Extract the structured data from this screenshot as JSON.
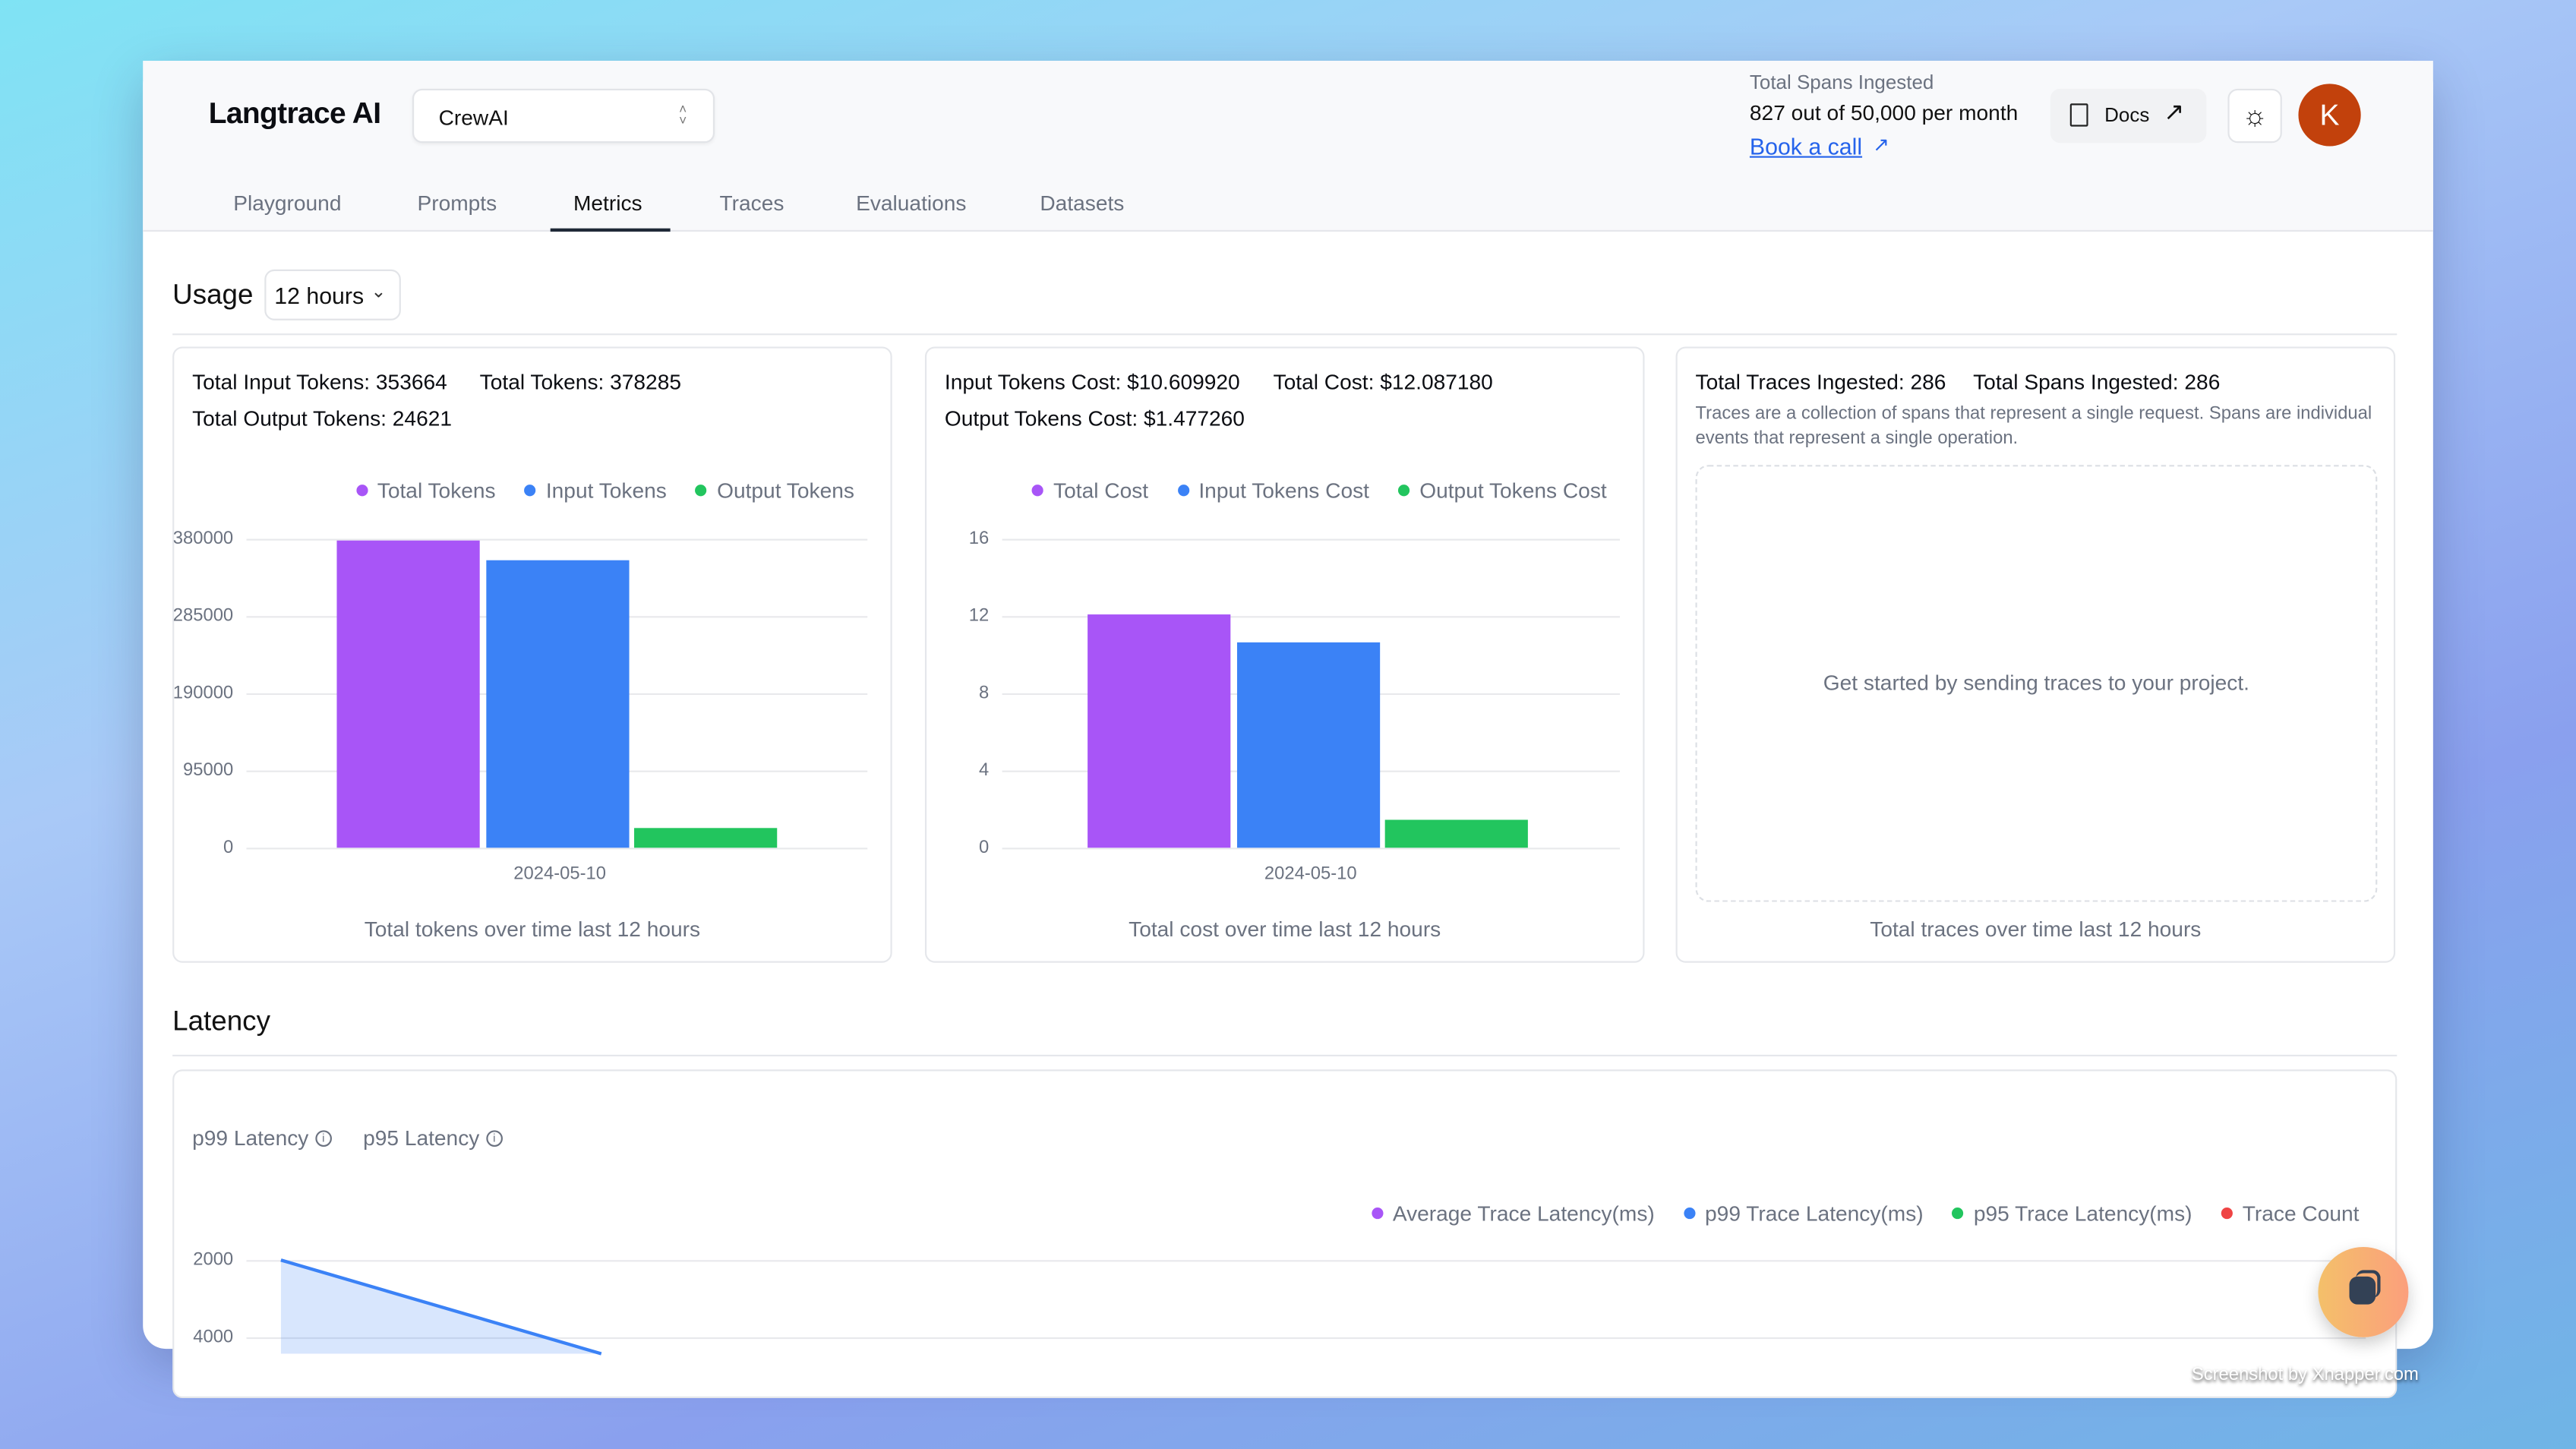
{
  "header": {
    "brand": "Langtrace AI",
    "project_select": "CrewAI",
    "spans_label": "Total Spans Ingested",
    "spans_value": "827 out of 50,000 per month",
    "book_call": "Book a call",
    "book_call_icon": "arrow-up-right-icon",
    "docs_label": "Docs",
    "theme_icon": "sun-icon",
    "avatar_initial": "K",
    "avatar_color": "#c2410c"
  },
  "tabs": [
    {
      "label": "Playground",
      "active": false
    },
    {
      "label": "Prompts",
      "active": false
    },
    {
      "label": "Metrics",
      "active": true
    },
    {
      "label": "Traces",
      "active": false
    },
    {
      "label": "Evaluations",
      "active": false
    },
    {
      "label": "Datasets",
      "active": false
    }
  ],
  "usage": {
    "title": "Usage",
    "range_select": "12 hours",
    "tokens_card": {
      "stats": [
        "Total Input Tokens: 353664",
        "Total Tokens: 378285",
        "Total Output Tokens: 24621"
      ],
      "caption": "Total tokens over time last 12 hours"
    },
    "cost_card": {
      "stats": [
        "Input Tokens Cost: $10.609920",
        "Total Cost: $12.087180",
        "Output Tokens Cost: $1.477260"
      ],
      "caption": "Total cost over time last 12 hours"
    },
    "traces_card": {
      "stats": [
        "Total Traces Ingested: 286",
        "Total Spans Ingested: 286"
      ],
      "description": "Traces are a collection of spans that represent a single request. Spans are individual events that represent a single operation.",
      "empty_message": "Get started by sending traces to your project.",
      "caption": "Total traces over time last 12 hours"
    }
  },
  "latency": {
    "title": "Latency",
    "tabs": [
      "p99 Latency",
      "p95 Latency"
    ]
  },
  "chart_data": [
    {
      "type": "bar",
      "categories": [
        "2024-05-10"
      ],
      "series": [
        {
          "name": "Total Tokens",
          "values": [
            378285
          ],
          "color": "#a855f7"
        },
        {
          "name": "Input Tokens",
          "values": [
            353664
          ],
          "color": "#3b82f6"
        },
        {
          "name": "Output Tokens",
          "values": [
            24621
          ],
          "color": "#22c55e"
        }
      ],
      "yticks": [
        "0",
        "95000",
        "190000",
        "285000",
        "380000"
      ],
      "ylim": [
        0,
        380000
      ],
      "grid": true,
      "legend": "top-right"
    },
    {
      "type": "bar",
      "categories": [
        "2024-05-10"
      ],
      "series": [
        {
          "name": "Total Cost",
          "values": [
            12.08718
          ],
          "color": "#a855f7"
        },
        {
          "name": "Input Tokens Cost",
          "values": [
            10.60992
          ],
          "color": "#3b82f6"
        },
        {
          "name": "Output Tokens Cost",
          "values": [
            1.47726
          ],
          "color": "#22c55e"
        }
      ],
      "yticks": [
        "0",
        "4",
        "8",
        "12",
        "16"
      ],
      "ylim": [
        0,
        16
      ],
      "grid": true,
      "legend": "top-right"
    },
    {
      "type": "area",
      "series": [
        {
          "name": "Average Trace Latency(ms)",
          "color": "#a855f7"
        },
        {
          "name": "p99 Trace Latency(ms)",
          "color": "#3b82f6"
        },
        {
          "name": "p95 Trace Latency(ms)",
          "color": "#22c55e"
        },
        {
          "name": "Trace Count",
          "color": "#ef4444"
        }
      ],
      "yticks_visible": [
        "2000",
        "4000"
      ],
      "grid": true,
      "legend": "top-right"
    }
  ],
  "footer": {
    "chat_icon": "chat-bubble-icon",
    "watermark": "Screenshot by Xnapper.com"
  }
}
